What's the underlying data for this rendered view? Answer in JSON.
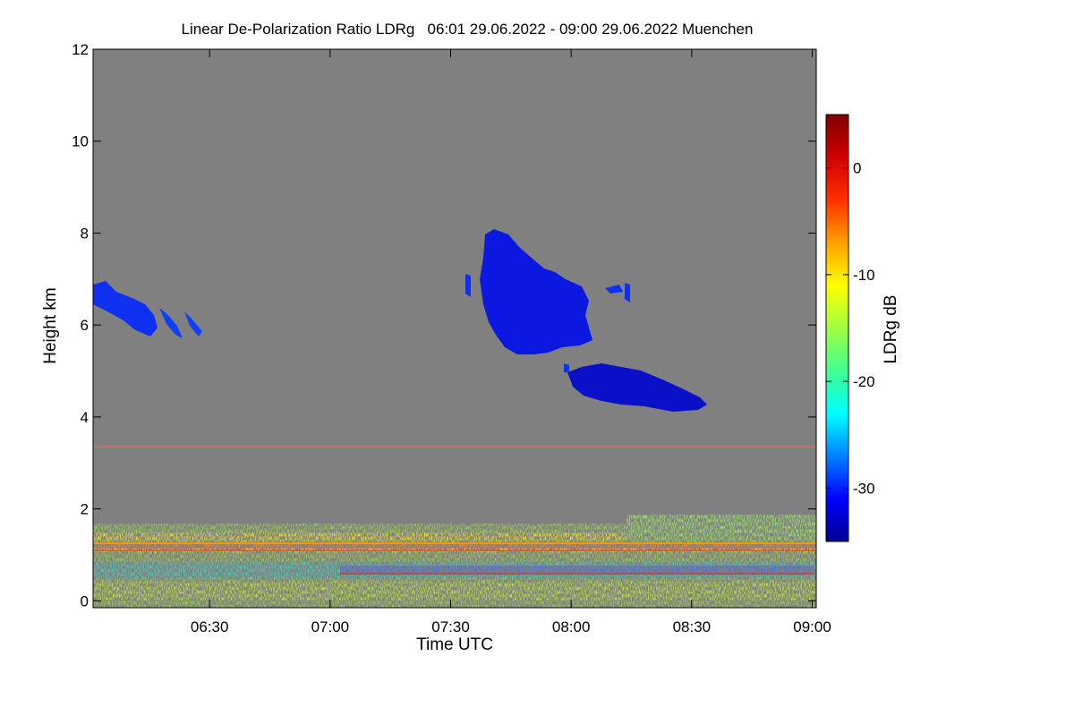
{
  "chart_data": {
    "type": "heatmap",
    "title": "Linear De-Polarization Ratio LDRg   06:01 29.06.2022 - 09:00 29.06.2022 Muenchen",
    "xlabel": "Time UTC",
    "ylabel": "Height km",
    "x_range_minutes": [
      361,
      541
    ],
    "x_ticks": [
      {
        "label": "06:30",
        "minutes": 390
      },
      {
        "label": "07:00",
        "minutes": 420
      },
      {
        "label": "07:30",
        "minutes": 450
      },
      {
        "label": "08:00",
        "minutes": 480
      },
      {
        "label": "08:30",
        "minutes": 510
      },
      {
        "label": "09:00",
        "minutes": 540
      }
    ],
    "y_range_km": [
      -0.15,
      12.0
    ],
    "y_ticks": [
      {
        "label": "0",
        "value": 0
      },
      {
        "label": "2",
        "value": 2
      },
      {
        "label": "4",
        "value": 4
      },
      {
        "label": "6",
        "value": 6
      },
      {
        "label": "8",
        "value": 8
      },
      {
        "label": "10",
        "value": 10
      },
      {
        "label": "12",
        "value": 12
      }
    ],
    "colorbar": {
      "label": "LDRg dB",
      "range_db": [
        -35,
        5
      ],
      "ticks": [
        {
          "label": "0",
          "value": 0
        },
        {
          "label": "-10",
          "value": -10
        },
        {
          "label": "-20",
          "value": -20
        },
        {
          "label": "-30",
          "value": -30
        }
      ],
      "colors": [
        "#00008f",
        "#0000ff",
        "#0080ff",
        "#00ffff",
        "#40ff90",
        "#a0ff40",
        "#ffff00",
        "#ffa000",
        "#ff3000",
        "#d00000",
        "#800000"
      ]
    },
    "background_color": "#808080",
    "features": [
      {
        "name": "cirrus left",
        "time_start": "06:01",
        "time_end": "06:26",
        "height_km": [
          5.8,
          7.0
        ],
        "ldr_db": -30
      },
      {
        "name": "cirrus large",
        "time_start": "07:34",
        "time_end": "08:15",
        "height_km": [
          5.5,
          8.1
        ],
        "ldr_db": -33
      },
      {
        "name": "mid-level cloud",
        "time_start": "07:59",
        "time_end": "08:33",
        "height_km": [
          4.2,
          5.2
        ],
        "ldr_db": -34
      },
      {
        "name": "boundary layer aerosol",
        "time_start": "06:01",
        "time_end": "09:00",
        "height_km": [
          0,
          2.0
        ],
        "ldr_db": -12
      }
    ]
  }
}
